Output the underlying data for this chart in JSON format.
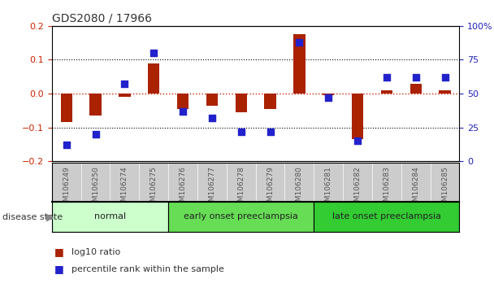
{
  "title": "GDS2080 / 17966",
  "samples": [
    "GSM106249",
    "GSM106250",
    "GSM106274",
    "GSM106275",
    "GSM106276",
    "GSM106277",
    "GSM106278",
    "GSM106279",
    "GSM106280",
    "GSM106281",
    "GSM106282",
    "GSM106283",
    "GSM106284",
    "GSM106285"
  ],
  "log10_ratio": [
    -0.085,
    -0.065,
    -0.01,
    0.09,
    -0.045,
    -0.035,
    -0.055,
    -0.045,
    0.175,
    -0.005,
    -0.135,
    0.01,
    0.03,
    0.01
  ],
  "percentile_rank": [
    12,
    20,
    57,
    80,
    37,
    32,
    22,
    22,
    88,
    47,
    15,
    62,
    62,
    62
  ],
  "groups": [
    {
      "label": "normal",
      "start": 0,
      "end": 4,
      "color": "#ccffcc"
    },
    {
      "label": "early onset preeclampsia",
      "start": 4,
      "end": 9,
      "color": "#66dd55"
    },
    {
      "label": "late onset preeclampsia",
      "start": 9,
      "end": 14,
      "color": "#33cc33"
    }
  ],
  "ylim_left": [
    -0.2,
    0.2
  ],
  "ylim_right": [
    0,
    100
  ],
  "yticks_left": [
    -0.2,
    -0.1,
    0,
    0.1,
    0.2
  ],
  "yticks_right": [
    0,
    25,
    50,
    75,
    100
  ],
  "bar_color": "#aa2200",
  "dot_color": "#2222cc",
  "background_color": "#ffffff",
  "zero_line_color": "#cc2200",
  "grid_color": "#000000",
  "tick_label_color": "#555555",
  "ylabel_left_color": "#cc2200",
  "ylabel_right_color": "#2222bb",
  "xtick_bg_color": "#cccccc",
  "title_color": "#333333",
  "group_border_color": "#000000",
  "legend_text_color": "#333333"
}
